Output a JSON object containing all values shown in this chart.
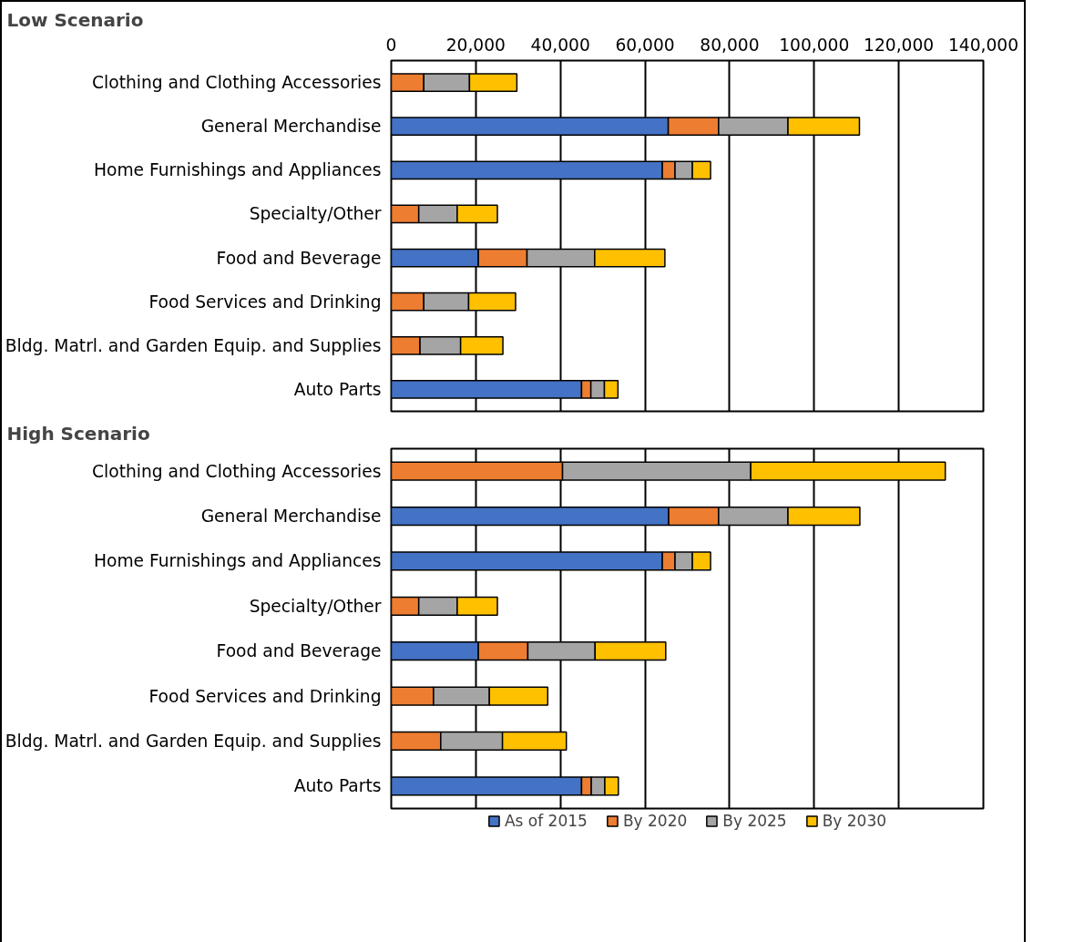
{
  "chart_data": [
    {
      "type": "bar",
      "title": "Low Scenario",
      "orientation": "horizontal",
      "stacked": true,
      "grid": "x",
      "categories": [
        "Clothing and Clothing Accessories",
        "General Merchandise",
        "Home Furnishings and Appliances",
        "Specialty/Other",
        "Food and Beverage",
        "Food Services and Drinking",
        "Bldg. Matrl. and Garden Equip. and Supplies",
        "Auto Parts"
      ],
      "xlim": [
        0,
        140000
      ],
      "xticks": [
        {
          "value": 0,
          "label": "0"
        },
        {
          "value": 20000,
          "label": "20,000"
        },
        {
          "value": 40000,
          "label": "40,000"
        },
        {
          "value": 60000,
          "label": "60,000"
        },
        {
          "value": 80000,
          "label": "80,000"
        },
        {
          "value": 100000,
          "label": "100,000"
        },
        {
          "value": 120000,
          "label": "120,000"
        },
        {
          "value": 140000,
          "label": "140,000"
        }
      ],
      "series": [
        {
          "color": "#4472c4",
          "values": [
            0,
            65500,
            64100,
            0,
            20600,
            0,
            0,
            45000
          ]
        },
        {
          "color": "#ed7d31",
          "values": [
            7700,
            11900,
            3000,
            6500,
            11500,
            7700,
            6800,
            2200
          ]
        },
        {
          "color": "#a5a5a5",
          "values": [
            10800,
            16400,
            4100,
            9100,
            16000,
            10600,
            9600,
            3200
          ]
        },
        {
          "color": "#ffc000",
          "values": [
            11200,
            16900,
            4300,
            9500,
            16600,
            11100,
            10000,
            3200
          ]
        }
      ]
    },
    {
      "type": "bar",
      "title": "High Scenario",
      "orientation": "horizontal",
      "stacked": true,
      "grid": "x",
      "tick_labels": "y",
      "legend": "bottom",
      "categories": [
        "Clothing and Clothing Accessories",
        "General Merchandise",
        "Home Furnishings and Appliances",
        "Specialty/Other",
        "Food and Beverage",
        "Food Services and Drinking",
        "Bldg. Matrl. and Garden Equip. and Supplies",
        "Auto Parts"
      ],
      "xlim": [
        0,
        140000
      ],
      "xticks": [
        0,
        20000,
        40000,
        60000,
        80000,
        100000,
        120000,
        140000
      ],
      "series": [
        {
          "name": "As of 2015",
          "color": "#4472c4",
          "values": [
            0,
            65600,
            64100,
            0,
            20600,
            0,
            0,
            45000
          ]
        },
        {
          "name": "By 2020",
          "color": "#ed7d31",
          "values": [
            40500,
            11800,
            3000,
            6500,
            11700,
            10000,
            11700,
            2300
          ]
        },
        {
          "name": "By 2025",
          "color": "#a5a5a5",
          "values": [
            44500,
            16400,
            4100,
            9100,
            15900,
            13200,
            14600,
            3200
          ]
        },
        {
          "name": "By 2030",
          "color": "#ffc000",
          "values": [
            46000,
            17000,
            4300,
            9500,
            16700,
            13800,
            15100,
            3200
          ]
        }
      ]
    }
  ]
}
